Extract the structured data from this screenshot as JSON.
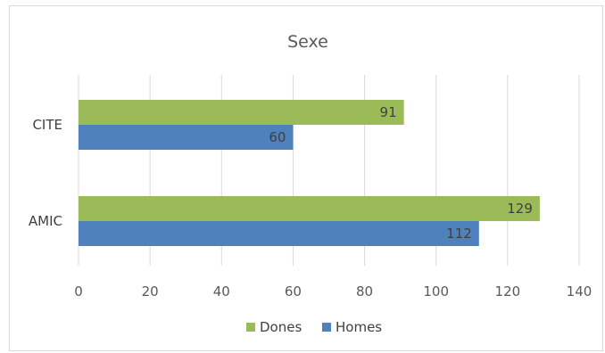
{
  "chart_data": {
    "type": "bar",
    "orientation": "horizontal",
    "title": "Sexe",
    "xlabel": "",
    "ylabel": "",
    "categories": [
      "CITE",
      "AMIC"
    ],
    "series": [
      {
        "name": "Dones",
        "color": "#9BBB59",
        "values": [
          91,
          129
        ]
      },
      {
        "name": "Homes",
        "color": "#4F81BD",
        "values": [
          60,
          112
        ]
      }
    ],
    "xlim": [
      0,
      140
    ],
    "xticks": [
      "0",
      "20",
      "40",
      "60",
      "80",
      "100",
      "120",
      "140"
    ],
    "grid": true,
    "legend_position": "bottom",
    "data_labels": true
  }
}
